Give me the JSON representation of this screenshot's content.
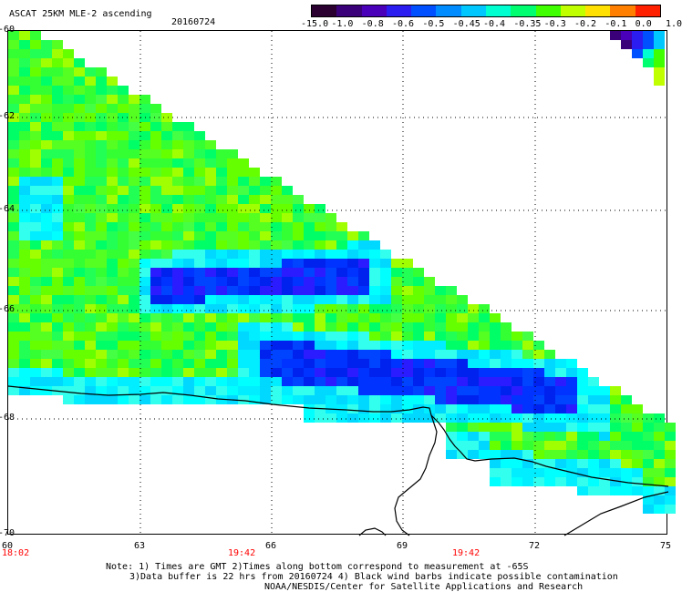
{
  "header": {
    "title": "ASCAT 25KM MLE-2 ascending",
    "date": "20160724"
  },
  "colorbar": {
    "labels": [
      "-15.0",
      "-1.0",
      "-0.8",
      "-0.6",
      "-0.5",
      "-0.45",
      "-0.4",
      "-0.35",
      "-0.3",
      "-0.2",
      "-0.1",
      "0.0",
      "1.0"
    ],
    "colors": [
      "#2b0030",
      "#3a007a",
      "#4a00b8",
      "#2b1cf0",
      "#0050ff",
      "#008cff",
      "#00c8ff",
      "#00ffd0",
      "#00ff70",
      "#40ff00",
      "#c0ff00",
      "#ffe000",
      "#ff8000",
      "#ff2000"
    ]
  },
  "axes": {
    "lat_labels": [
      "-60",
      "-62",
      "-64",
      "-66",
      "-68",
      "-70"
    ],
    "lon_labels": [
      "60",
      "63",
      "66",
      "69",
      "72",
      "75"
    ],
    "time_labels": [
      "18:02",
      "19:42",
      "19:42"
    ]
  },
  "notes": [
    "Note: 1) Times are GMT 2)Times along bottom correspond to measurement at -65S",
    "3)Data buffer is 22 hrs from 20160724 4) Black wind barbs indicate possible contamination",
    "NOAA/NESDIS/Center for Satellite Applications and Research"
  ]
}
